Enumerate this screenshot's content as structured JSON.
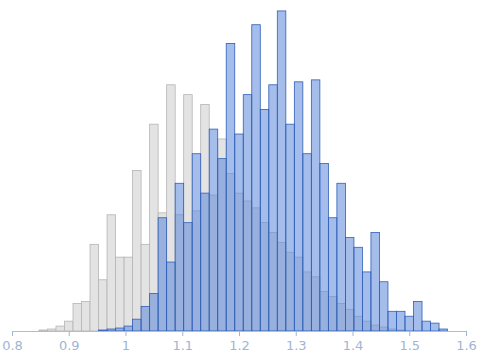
{
  "chart_data": {
    "type": "histogram",
    "bins": [
      0.8325,
      0.8475,
      0.8625,
      0.8775,
      0.8925,
      0.9075,
      0.9225,
      0.9375,
      0.9525,
      0.9675,
      0.9825,
      0.9975,
      1.0125,
      1.0275,
      1.0425,
      1.0575,
      1.0725,
      1.0875,
      1.1025,
      1.1175,
      1.1325,
      1.1475,
      1.1625,
      1.1775,
      1.1925,
      1.2075,
      1.2225,
      1.2375,
      1.2525,
      1.2675,
      1.2825,
      1.2975,
      1.3125,
      1.3275,
      1.3425,
      1.3575,
      1.3725,
      1.3875,
      1.4025,
      1.4175,
      1.4325,
      1.4475,
      1.4625,
      1.4775,
      1.4925,
      1.5075,
      1.5225,
      1.5375,
      1.5525,
      1.5675
    ],
    "series": [
      {
        "color": "#e3e3e3",
        "values": [
          0,
          1,
          2,
          5,
          10,
          28,
          30,
          88,
          52,
          118,
          75,
          75,
          163,
          88,
          210,
          120,
          250,
          118,
          240,
          122,
          230,
          138,
          195,
          160,
          140,
          132,
          125,
          110,
          100,
          90,
          80,
          75,
          60,
          55,
          40,
          35,
          28,
          22,
          15,
          10,
          6,
          4,
          2,
          1,
          0,
          0,
          0,
          0,
          0
        ]
      },
      {
        "color": "#5b87d9",
        "values": [
          0,
          0,
          0,
          0,
          0,
          0,
          0,
          0,
          1,
          2,
          3,
          5,
          12,
          25,
          38,
          115,
          70,
          150,
          110,
          180,
          140,
          205,
          175,
          292,
          200,
          240,
          311,
          225,
          250,
          325,
          210,
          253,
          180,
          255,
          170,
          115,
          150,
          95,
          85,
          60,
          100,
          50,
          20,
          20,
          15,
          30,
          10,
          8,
          2
        ]
      }
    ],
    "xlim": [
      0.8,
      1.6
    ],
    "xticks": [
      0.8,
      0.9,
      1,
      1.1,
      1.2,
      1.3,
      1.4,
      1.5,
      1.6
    ],
    "ylim": [
      0,
      330
    ],
    "tick_labels": "x"
  }
}
